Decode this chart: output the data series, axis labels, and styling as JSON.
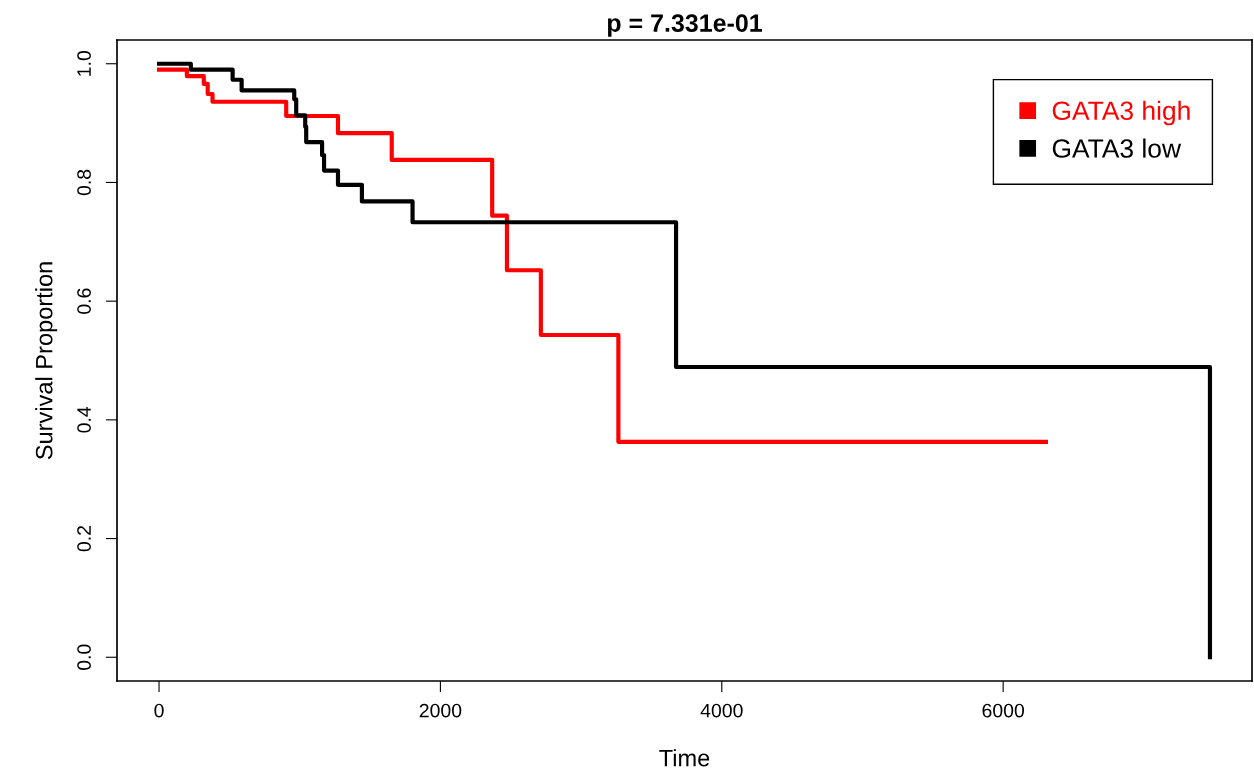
{
  "chart_data": {
    "type": "step",
    "title": "p = 7.331e-01",
    "xlabel": "Time",
    "ylabel": "Survival Proportion",
    "series": [
      {
        "name": "GATA3 high",
        "color": "#ff0000",
        "x": [
          0,
          198,
          318,
          346,
          380,
          904,
          1272,
          1654,
          2368,
          2473,
          2714,
          3265,
          6304
        ],
        "values": [
          0.99,
          0.979,
          0.966,
          0.949,
          0.936,
          0.912,
          0.883,
          0.838,
          0.744,
          0.652,
          0.543,
          0.363,
          0.363
        ]
      },
      {
        "name": "GATA3 low",
        "color": "#000000",
        "x": [
          0,
          226,
          523,
          587,
          961,
          975,
          1039,
          1046,
          1159,
          1173,
          1272,
          1442,
          1802,
          3675,
          7470,
          7470
        ],
        "values": [
          1.0,
          0.99,
          0.973,
          0.955,
          0.94,
          0.913,
          0.894,
          0.868,
          0.846,
          0.82,
          0.796,
          0.768,
          0.733,
          0.489,
          0.489,
          0.0
        ]
      }
    ],
    "xlim": [
      -298.8,
      7768.8
    ],
    "ylim": [
      -0.04,
      1.04
    ],
    "xticks": [
      0,
      2000,
      4000,
      6000
    ],
    "yticks": [
      {
        "value": 0,
        "label": "0.0"
      },
      {
        "value": 0.2,
        "label": "0.2"
      },
      {
        "value": 0.4,
        "label": "0.4"
      },
      {
        "value": 0.6,
        "label": "0.6"
      },
      {
        "value": 0.8,
        "label": "0.8"
      },
      {
        "value": 1.0,
        "label": "1.0"
      }
    ],
    "legend": "top right",
    "grid": false
  }
}
